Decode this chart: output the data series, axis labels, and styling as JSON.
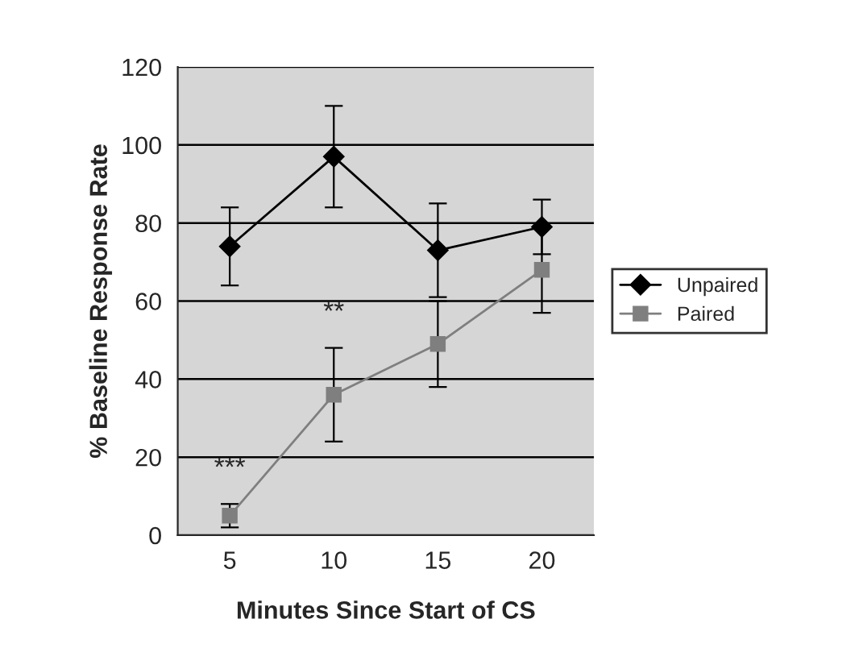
{
  "chart_data": {
    "type": "line",
    "xlabel": "Minutes Since Start of CS",
    "ylabel": "% Baseline Response Rate",
    "categories": [
      "5",
      "10",
      "15",
      "20"
    ],
    "series": [
      {
        "name": "Unpaired",
        "color": "#000000",
        "marker": "diamond",
        "values": [
          74,
          97,
          73,
          79
        ],
        "errors": [
          10,
          13,
          12,
          7
        ]
      },
      {
        "name": "Paired",
        "color": "#7f7f7f",
        "marker": "square",
        "values": [
          5,
          36,
          49,
          68
        ],
        "errors": [
          3,
          12,
          11,
          11
        ]
      }
    ],
    "ylim": [
      0,
      120
    ],
    "yticks": [
      0,
      20,
      40,
      60,
      80,
      100,
      120
    ],
    "grid": "y",
    "legend": "right",
    "annotations": [
      "***",
      "**"
    ]
  }
}
